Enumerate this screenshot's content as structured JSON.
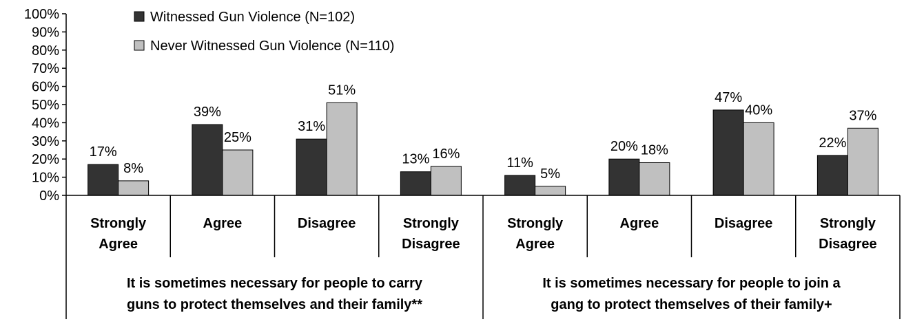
{
  "chart_data": {
    "type": "bar",
    "ylim": [
      0,
      100
    ],
    "yticks": [
      "0%",
      "10%",
      "20%",
      "30%",
      "40%",
      "50%",
      "60%",
      "70%",
      "80%",
      "90%",
      "100%"
    ],
    "legend_position": "top-left",
    "grid": false,
    "categories": [
      [
        "Strongly",
        "Agree"
      ],
      [
        "Agree"
      ],
      [
        "Disagree"
      ],
      [
        "Strongly",
        "Disagree"
      ],
      [
        "Strongly",
        "Agree"
      ],
      [
        "Agree"
      ],
      [
        "Disagree"
      ],
      [
        "Strongly",
        "Disagree"
      ]
    ],
    "groups": [
      {
        "label_lines": [
          "It is sometimes necessary for people to carry",
          "guns to protect themselves and their family**"
        ],
        "category_indices": [
          0,
          1,
          2,
          3
        ]
      },
      {
        "label_lines": [
          "It is sometimes necessary for people to join a",
          "gang to protect themselves of their family+"
        ],
        "category_indices": [
          4,
          5,
          6,
          7
        ]
      }
    ],
    "series": [
      {
        "name": "Witnessed Gun Violence (N=102)",
        "color": "#333333",
        "values": [
          17,
          39,
          31,
          13,
          11,
          20,
          47,
          22
        ],
        "labels": [
          "17%",
          "39%",
          "31%",
          "13%",
          "11%",
          "20%",
          "47%",
          "22%"
        ]
      },
      {
        "name": "Never Witnessed Gun Violence (N=110)",
        "color": "#c0c0c0",
        "values": [
          8,
          25,
          51,
          16,
          5,
          18,
          40,
          37
        ],
        "labels": [
          "8%",
          "25%",
          "51%",
          "16%",
          "5%",
          "18%",
          "40%",
          "37%"
        ]
      }
    ]
  }
}
